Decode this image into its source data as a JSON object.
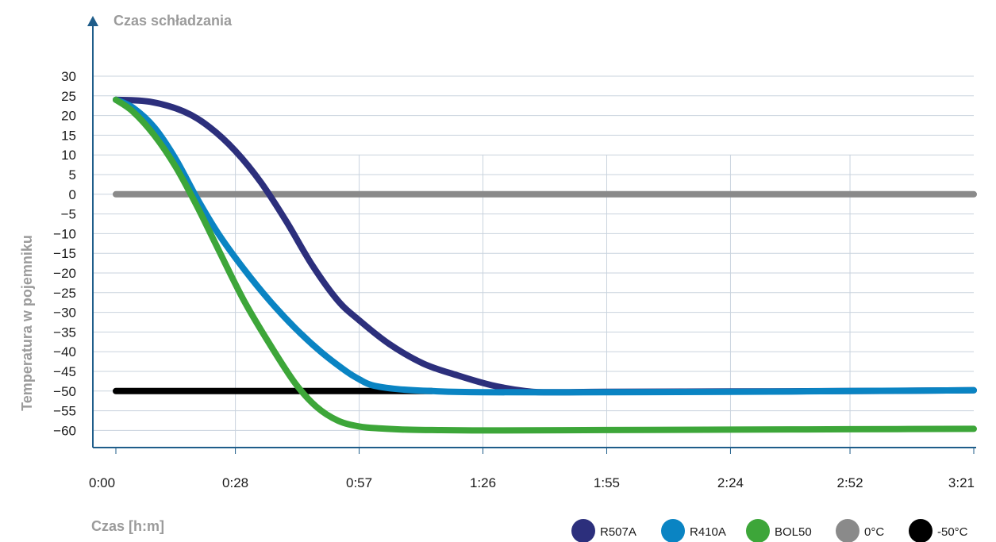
{
  "chart_data": {
    "type": "line",
    "title": "Czas schładzania",
    "xlabel": "Czas [h:m]",
    "ylabel": "Temperatura w pojemniku",
    "x_unit": "minutes",
    "xlim": [
      0,
      201
    ],
    "ylim": [
      -65,
      30
    ],
    "x_ticks": [
      {
        "value": 0,
        "label": "0:00"
      },
      {
        "value": 28,
        "label": "0:28"
      },
      {
        "value": 57,
        "label": "0:57"
      },
      {
        "value": 86,
        "label": "1:26"
      },
      {
        "value": 115,
        "label": "1:55"
      },
      {
        "value": 144,
        "label": "2:24"
      },
      {
        "value": 172,
        "label": "2:52"
      },
      {
        "value": 201,
        "label": "3:21"
      }
    ],
    "y_ticks": [
      30,
      25,
      20,
      15,
      10,
      5,
      0,
      -5,
      -10,
      -15,
      -20,
      -25,
      -30,
      -35,
      -40,
      -45,
      -50,
      -55,
      -60
    ],
    "y_tick_labels": [
      "30",
      "25",
      "20",
      "15",
      "10",
      "5",
      "0",
      "−5",
      "−10",
      "−15",
      "−20",
      "−25",
      "−30",
      "−35",
      "−40",
      "−45",
      "−50",
      "−55",
      "−60"
    ],
    "grid": {
      "horizontal": true,
      "vertical": true
    },
    "legend_position": "bottom-right",
    "series": [
      {
        "name": "R507A",
        "color": "#2c2f7c",
        "x": [
          0,
          8,
          16,
          22,
          28,
          34,
          40,
          46,
          52,
          57,
          64,
          72,
          80,
          88,
          96,
          102,
          115,
          144,
          172,
          201
        ],
        "y": [
          24,
          23.5,
          21,
          17,
          11,
          3,
          -7,
          -18,
          -27,
          -32,
          -38,
          -43,
          -46,
          -48.5,
          -50,
          -50.3,
          -50.2,
          -50.1,
          -50,
          -49.8
        ]
      },
      {
        "name": "R410A",
        "color": "#0a84c3",
        "x": [
          0,
          4,
          9,
          14,
          19,
          24,
          30,
          36,
          42,
          48,
          54,
          57,
          60,
          66,
          74,
          86,
          115,
          144,
          172,
          201
        ],
        "y": [
          24,
          22,
          17,
          9,
          -1,
          -10,
          -19,
          -27,
          -34,
          -40,
          -45,
          -47,
          -48.5,
          -49.5,
          -50,
          -50.3,
          -50.3,
          -50.2,
          -50,
          -49.8
        ]
      },
      {
        "name": "BOL50",
        "color": "#3da639",
        "x": [
          0,
          4,
          9,
          14,
          19,
          24,
          30,
          36,
          42,
          47,
          52,
          57,
          62,
          68,
          74,
          86,
          115,
          144,
          172,
          201
        ],
        "y": [
          24,
          21,
          15,
          7,
          -3,
          -14,
          -27,
          -38,
          -48,
          -54,
          -57.5,
          -59,
          -59.5,
          -59.8,
          -59.9,
          -60,
          -59.9,
          -59.8,
          -59.7,
          -59.6
        ]
      },
      {
        "name": "0°C",
        "color": "#8a8a8a",
        "x": [
          0,
          201
        ],
        "y": [
          0,
          0
        ]
      },
      {
        "name": "-50°C",
        "color": "#000000",
        "x": [
          0,
          74
        ],
        "y": [
          -50,
          -50
        ]
      }
    ]
  }
}
